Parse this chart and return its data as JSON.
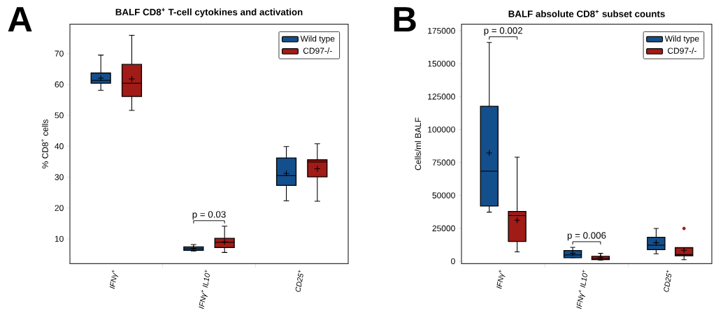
{
  "chart_data": [
    {
      "type": "box",
      "title": "BALF CD8$^{+}$ T-cell cytokines and activation",
      "ylabel": "% CD8$^{+}$ cells",
      "categories": [
        "IFNγ$^{+}$",
        "IFNγ$^{+}$ IL10$^{+}$",
        "CD25$^{+}$"
      ],
      "ylim": [
        2,
        79.5
      ],
      "yticks": [
        10,
        20,
        30,
        40,
        50,
        60,
        70
      ],
      "legend": "top right",
      "grid": false,
      "series": [
        {
          "name": "Wild type",
          "color": "#134f8c",
          "boxes": [
            {
              "low": 58.1,
              "q1": 60.4,
              "median": 61.3,
              "q3": 63.7,
              "high": 69.5,
              "mean": 62.0
            },
            {
              "low": 6.1,
              "q1": 6.3,
              "median": 6.8,
              "q3": 7.4,
              "high": 8.2,
              "mean": 6.9
            },
            {
              "low": 22.3,
              "q1": 27.3,
              "median": 30.5,
              "q3": 36.2,
              "high": 39.9,
              "mean": 31.2
            }
          ]
        },
        {
          "name": "CD97-/-",
          "color": "#a11b17",
          "boxes": [
            {
              "low": 51.6,
              "q1": 56.1,
              "median": 60.4,
              "q3": 66.5,
              "high": 75.9,
              "mean": 61.8
            },
            {
              "low": 5.6,
              "q1": 7.2,
              "median": 8.9,
              "q3": 10.2,
              "high": 14.1,
              "mean": 9.0
            },
            {
              "low": 22.2,
              "q1": 30.1,
              "median": 34.9,
              "q3": 35.6,
              "high": 40.8,
              "mean": 32.7
            }
          ]
        }
      ],
      "annotations": [
        "A",
        "p = 0.03"
      ]
    },
    {
      "type": "box",
      "title": "BALF absolute CD8$^{+}$ subset counts",
      "ylabel": "Cells/ml BALF",
      "categories": [
        "IFNγ$^{+}$",
        "IFNγ$^{+}$ IL10$^{+}$",
        "CD25$^{+}$"
      ],
      "ylim": [
        -1800,
        180000
      ],
      "yticks": [
        0,
        25000,
        50000,
        75000,
        100000,
        125000,
        150000,
        175000
      ],
      "legend": "top right",
      "grid": false,
      "series": [
        {
          "name": "Wild type",
          "color": "#134f8c",
          "boxes": [
            {
              "low": 37300,
              "q1": 41900,
              "median": 68400,
              "q3": 117700,
              "high": 166200,
              "mean": 82200
            },
            {
              "low": 2700,
              "q1": 2700,
              "median": 4800,
              "q3": 8100,
              "high": 10600,
              "mean": 6000
            },
            {
              "low": 5700,
              "q1": 8800,
              "median": 12200,
              "q3": 18200,
              "high": 24900,
              "mean": 14100
            }
          ]
        },
        {
          "name": "CD97-/-",
          "color": "#a11b17",
          "boxes": [
            {
              "low": 7100,
              "q1": 15000,
              "median": 34700,
              "q3": 37800,
              "high": 79000,
              "mean": 31100
            },
            {
              "low": 900,
              "q1": 1200,
              "median": 2100,
              "q3": 3700,
              "high": 6000,
              "mean": 3000
            },
            {
              "low": 1200,
              "q1": 4200,
              "median": 5100,
              "q3": 10300,
              "high": 10300,
              "mean": 8300,
              "outliers": [
                24900
              ]
            }
          ]
        }
      ],
      "annotations": [
        "B",
        "p = 0.002",
        "p = 0.006"
      ]
    }
  ]
}
